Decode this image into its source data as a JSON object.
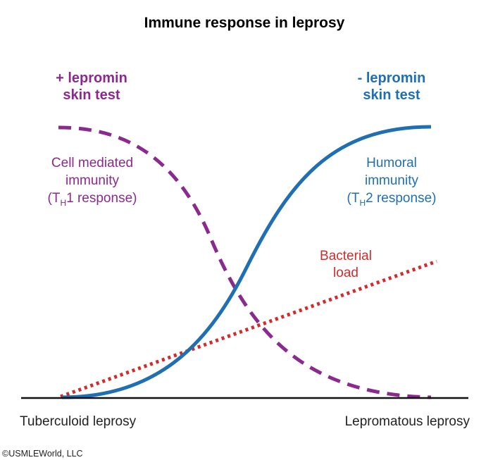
{
  "title": "Immune response in leprosy",
  "colors": {
    "cell_mediated": "#8b2a8e",
    "humoral": "#1f6fb2",
    "bacterial": "#d42a2a",
    "axis": "#111111"
  },
  "left_header": {
    "line1": "+ lepromin",
    "line2": "skin test"
  },
  "right_header": {
    "line1": "- lepromin",
    "line2": "skin test"
  },
  "cell_mediated": {
    "line1": "Cell mediated",
    "line2": "immunity",
    "line3_open": "(T",
    "line3_sub": "H",
    "line3_close": "1 response)"
  },
  "humoral": {
    "line1": "Humoral",
    "line2": "immunity",
    "line3_open": "(T",
    "line3_sub": "H",
    "line3_close": "2 response)"
  },
  "bacterial": {
    "line1": "Bacterial",
    "line2": "load"
  },
  "axis": {
    "left_label": "Tuberculoid leprosy",
    "right_label": "Lepromatous leprosy"
  },
  "copyright": "©USMLEWorld, LLC"
}
